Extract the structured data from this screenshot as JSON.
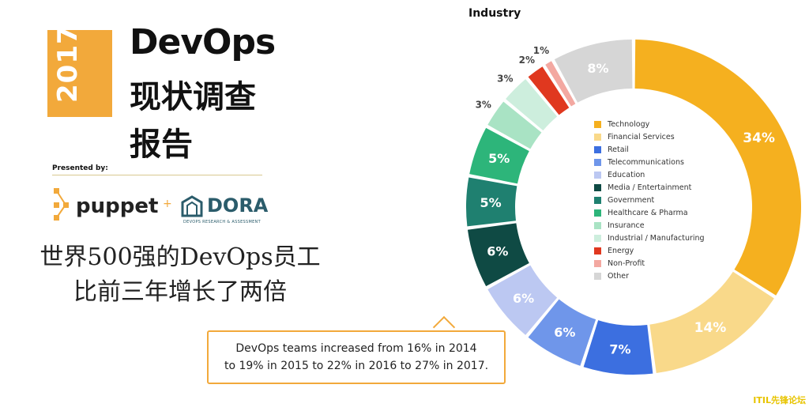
{
  "report": {
    "year": "2017",
    "title_en": "DevOps",
    "title_cn_line1": "现状调查",
    "title_cn_line2": "报告",
    "presented_by": "Presented by:",
    "logo_puppet": "puppet",
    "logo_plus": "+",
    "logo_dora": "DORA",
    "logo_dora_sub": "DEVOPS RESEARCH & ASSESSMENT"
  },
  "headline": {
    "line1": "世界500强的DevOps员工",
    "line2": "比前三年增长了两倍"
  },
  "callout": {
    "line1": "DevOps teams increased from 16% in 2014",
    "line2": "to 19% in 2015 to 22% in 2016 to 27% in 2017."
  },
  "watermark": "ITIL先锋论坛",
  "chart_data": {
    "type": "pie",
    "title": "Industry",
    "donut": true,
    "legend_position": "center",
    "categories": [
      "Technology",
      "Financial Services",
      "Retail",
      "Telecommunications",
      "Education",
      "Media / Entertainment",
      "Government",
      "Healthcare & Pharma",
      "Insurance",
      "Industrial / Manufacturing",
      "Energy",
      "Non-Profit",
      "Other"
    ],
    "values": [
      34,
      14,
      7,
      6,
      6,
      6,
      5,
      5,
      3,
      3,
      2,
      1,
      8
    ],
    "labels": [
      "34%",
      "14%",
      "7%",
      "6%",
      "6%",
      "6%",
      "5%",
      "5%",
      "3%",
      "3%",
      "2%",
      "1%",
      "8%"
    ],
    "colors": [
      "#F5B01F",
      "#F9D98A",
      "#3C6FE0",
      "#6F96EA",
      "#BCC8F2",
      "#0F4A44",
      "#1F8070",
      "#2DB57A",
      "#A9E3C4",
      "#CDEEDD",
      "#E0381F",
      "#F3A8A1",
      "#D6D6D6"
    ]
  }
}
